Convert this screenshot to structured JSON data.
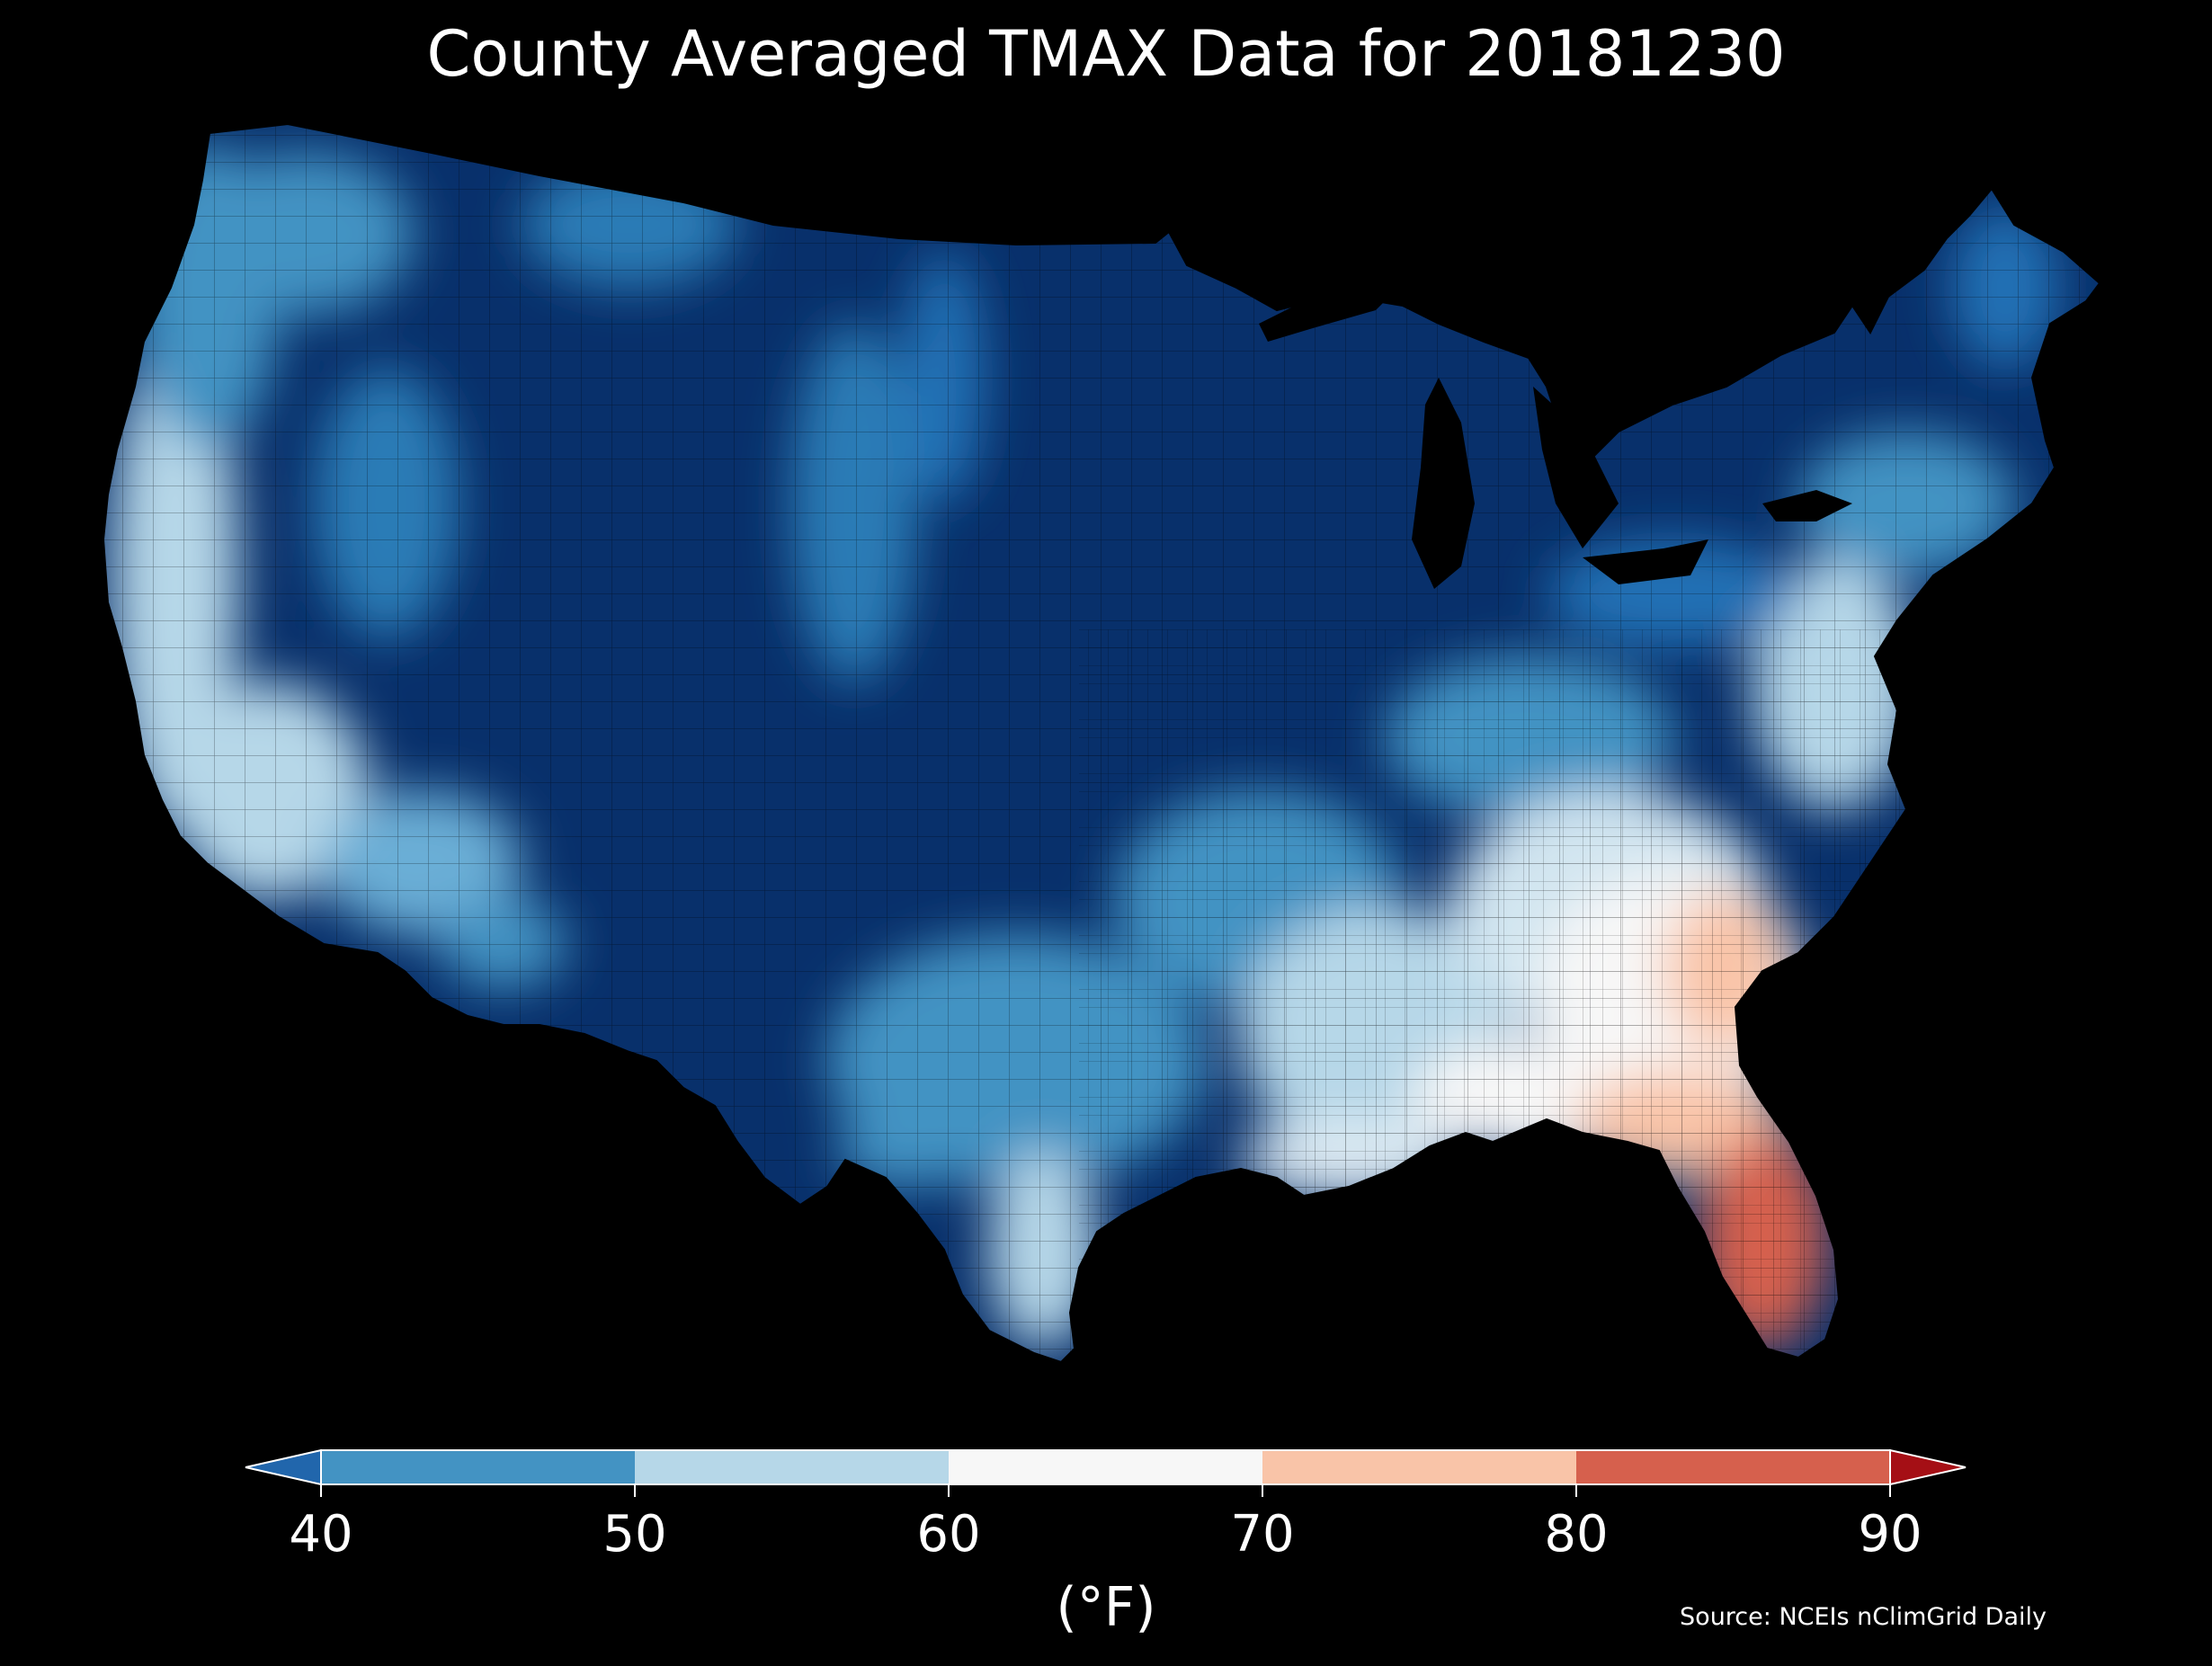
{
  "title": "County Averaged TMAX Data for 20181230",
  "source": "Source: NCEIs nClimGrid Daily",
  "colorbar": {
    "unit": "(°F)",
    "ticks": [
      "40",
      "50",
      "60",
      "70",
      "80",
      "90"
    ],
    "min": 40,
    "max": 90,
    "extend": "both",
    "bins": [
      {
        "from": null,
        "to": 40,
        "color": "#2166ac"
      },
      {
        "from": 40,
        "to": 50,
        "color": "#4393c3"
      },
      {
        "from": 50,
        "to": 60,
        "color": "#b6d7e8"
      },
      {
        "from": 60,
        "to": 70,
        "color": "#f7f7f7"
      },
      {
        "from": 70,
        "to": 80,
        "color": "#f9c4a8"
      },
      {
        "from": 80,
        "to": 90,
        "color": "#d6604d"
      },
      {
        "from": 90,
        "to": null,
        "color": "#a50f15"
      }
    ]
  },
  "map": {
    "region": "Contiguous United States",
    "variable": "TMAX",
    "boundaries": "counties",
    "background_color": "#000000",
    "border_color": "#000000",
    "regional_values_F": [
      {
        "region": "Pacific Northwest coast",
        "band": "50-60"
      },
      {
        "region": "California coast",
        "band": "50-60"
      },
      {
        "region": "Great Basin / Rockies",
        "band": "<40"
      },
      {
        "region": "Northern Plains",
        "band": "<40"
      },
      {
        "region": "Upper Midwest / Great Lakes",
        "band": "<40"
      },
      {
        "region": "Ohio Valley",
        "band": "40-50"
      },
      {
        "region": "New England",
        "band": "40-50"
      },
      {
        "region": "Mid-Atlantic coast",
        "band": "50-60"
      },
      {
        "region": "Southeast",
        "band": "60-70"
      },
      {
        "region": "Georgia / South Carolina coast",
        "band": "70-80"
      },
      {
        "region": "Florida peninsula",
        "band": "80-90"
      },
      {
        "region": "South Texas",
        "band": "50-60"
      },
      {
        "region": "West Texas",
        "band": "<40"
      }
    ]
  }
}
